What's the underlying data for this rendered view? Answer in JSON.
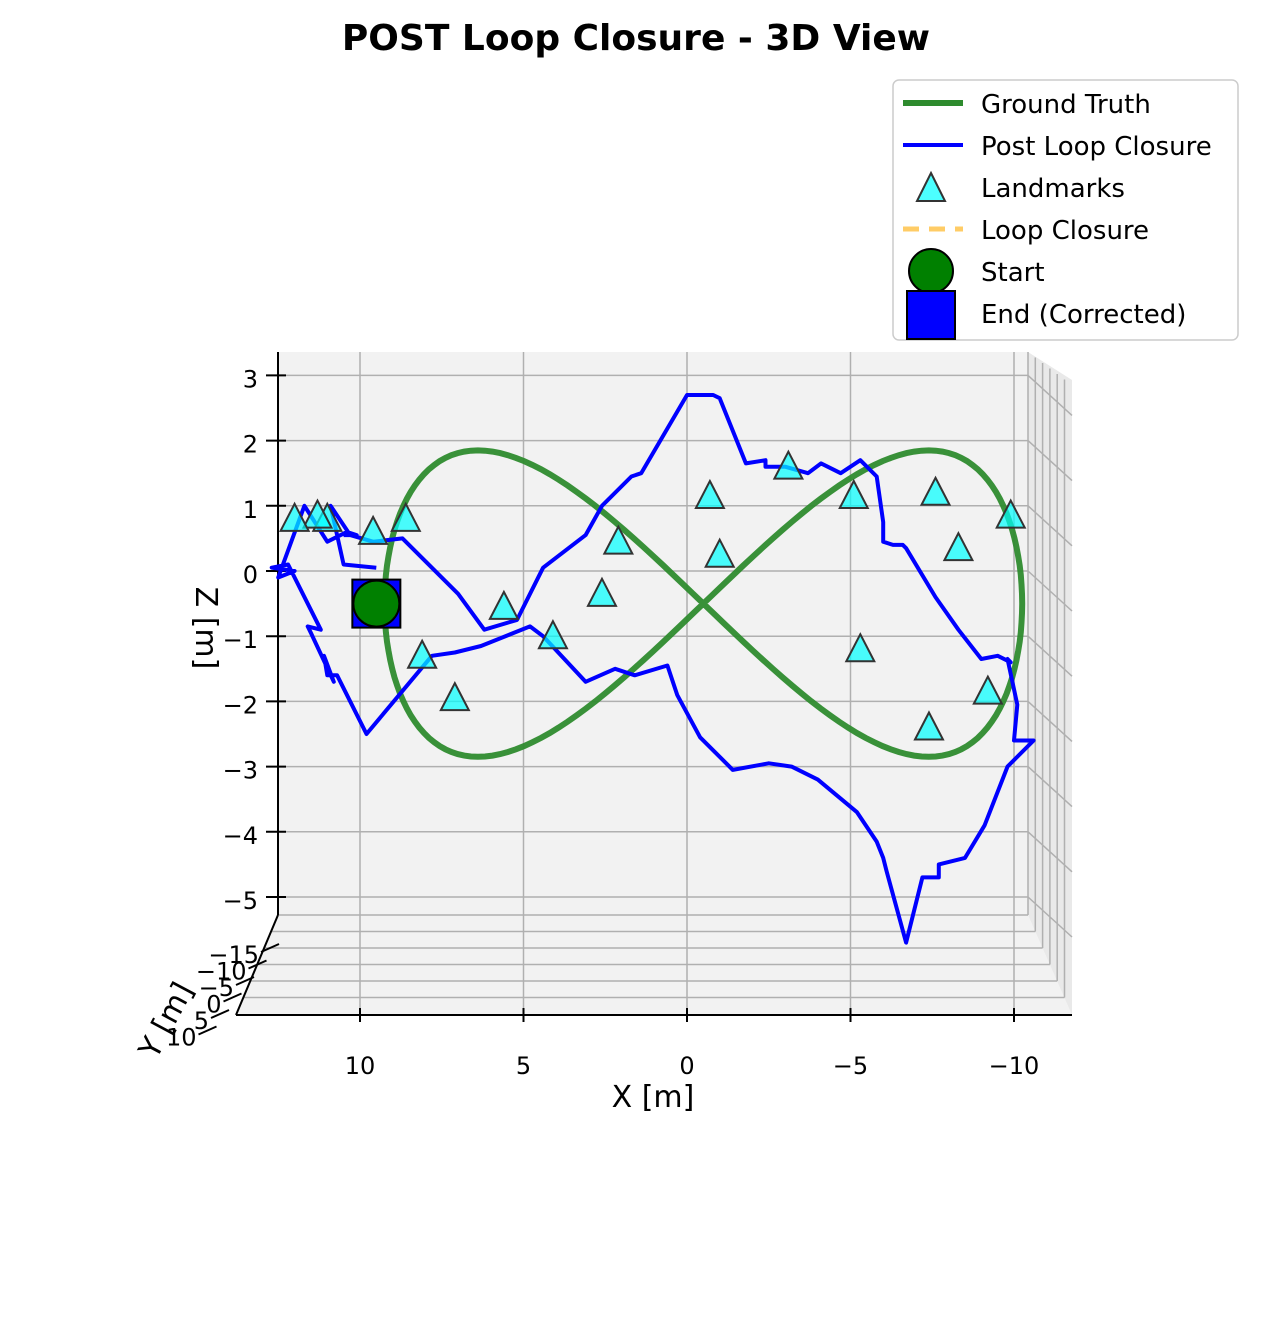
{
  "chart_data": {
    "type": "line",
    "title": "POST Loop Closure - 3D View",
    "xlabel": "X [m]",
    "ylabel": "Y [m]",
    "zlabel": "Z [m]",
    "view": "3D, seen from the front (Y axis foreshortened)",
    "x_axis_inverted": true,
    "xlim": [
      13,
      -12
    ],
    "zlim": [
      -5.2,
      3.3
    ],
    "xticks": [
      10,
      5,
      0,
      -5,
      -10
    ],
    "xtick_labels": [
      "10",
      "5",
      "0",
      "−5",
      "−10"
    ],
    "yticks": [
      -15,
      -10,
      -5,
      0,
      5,
      10
    ],
    "ytick_labels": [
      "−15",
      "−10",
      "−5",
      "0",
      "5",
      "10"
    ],
    "zticks": [
      3,
      2,
      1,
      0,
      -1,
      -2,
      -3,
      -4,
      -5
    ],
    "ztick_labels": [
      "3",
      "2",
      "1",
      "0",
      "−1",
      "−2",
      "−3",
      "−4",
      "−5"
    ],
    "grid": true,
    "legend_position": "top-right",
    "colors": {
      "ground_truth": "#2e8b2e",
      "post_loop_closure": "#0000ff",
      "landmarks": "#00ffff",
      "loop_closure": "#ffcc66",
      "start": "#008000",
      "end": "#0000ff"
    },
    "series": [
      {
        "name": "Ground Truth",
        "style": "figure-eight",
        "center": [
          -0.5,
          -0.5
        ],
        "x_amplitude": 9.75,
        "z_amplitude": 2.35,
        "z_phase_deg": 0
      },
      {
        "name": "Post Loop Closure",
        "x": [
          9.5,
          10.5,
          10.9,
          10.3,
          9.6,
          8.7,
          7.0,
          7.0,
          6.2,
          5.2,
          4.4,
          4.4,
          3.1,
          2.6,
          1.7,
          1.4,
          0.0,
          -0.8,
          -1.0,
          -1.8,
          -2.4,
          -2.4,
          -3.0,
          -3.7,
          -4.1,
          -4.7,
          -5.3,
          -5.8,
          -6.0,
          -6.0,
          -6.3,
          -6.6,
          -6.7,
          -7.6,
          -8.3,
          -9.0,
          -9.5,
          -9.9,
          -9.8,
          -10.1,
          -10.0,
          -10.6,
          -9.8,
          -9.1,
          -8.5,
          -7.7,
          -7.7,
          -7.2,
          -6.7,
          -6.1,
          -6.0,
          -5.8,
          -5.2,
          -4.0,
          -3.2,
          -2.5,
          -1.4,
          -0.4,
          0.3,
          0.6,
          1.6,
          2.2,
          3.1,
          4.4,
          4.8,
          6.3,
          7.1,
          7.8,
          9.8,
          10.7,
          11.0,
          11.1,
          10.8,
          11.5,
          11.6,
          11.2,
          12.2,
          12.7,
          12.0,
          12.5,
          11.7,
          11.0,
          10.4,
          10.1,
          10.5
        ],
        "z": [
          0.05,
          0.1,
          1.0,
          0.55,
          0.45,
          0.5,
          -0.35,
          -0.35,
          -0.9,
          -0.75,
          0.05,
          0.05,
          0.55,
          1.0,
          1.45,
          1.5,
          2.7,
          2.7,
          2.65,
          1.65,
          1.7,
          1.6,
          1.6,
          1.5,
          1.65,
          1.5,
          1.7,
          1.45,
          0.75,
          0.45,
          0.4,
          0.4,
          0.35,
          -0.4,
          -0.9,
          -1.35,
          -1.3,
          -1.4,
          -1.35,
          -2.05,
          -2.6,
          -2.6,
          -3.0,
          -3.9,
          -4.4,
          -4.5,
          -4.7,
          -4.7,
          -5.7,
          -4.6,
          -4.4,
          -4.15,
          -3.7,
          -3.2,
          -3.0,
          -2.95,
          -3.05,
          -2.55,
          -1.9,
          -1.45,
          -1.6,
          -1.5,
          -1.7,
          -1.0,
          -0.85,
          -1.15,
          -1.25,
          -1.3,
          -2.5,
          -1.6,
          -1.6,
          -1.3,
          -1.7,
          -0.95,
          -0.85,
          -0.9,
          0.1,
          0.05,
          0.0,
          -0.1,
          1.0,
          0.45,
          0.6,
          0.55,
          0.55
        ]
      },
      {
        "name": "Landmarks",
        "marker": "triangle",
        "x": [
          11.0,
          11.3,
          9.6,
          8.6,
          8.1,
          7.1,
          5.6,
          4.1,
          2.6,
          2.1,
          -0.7,
          -1.0,
          -3.1,
          -5.1,
          -5.3,
          -7.4,
          -7.6,
          -8.3,
          -9.2,
          -9.9,
          12.0
        ],
        "z": [
          0.8,
          0.85,
          0.6,
          0.8,
          -1.3,
          -1.95,
          -0.55,
          -1.0,
          -0.35,
          0.45,
          1.15,
          0.25,
          1.6,
          1.15,
          -1.2,
          -2.4,
          1.2,
          0.35,
          -1.85,
          0.85,
          0.8
        ]
      },
      {
        "name": "Loop Closure",
        "style": "dashed",
        "x": [],
        "z": []
      },
      {
        "name": "Start",
        "marker": "circle",
        "x": [
          9.5
        ],
        "z": [
          -0.5
        ]
      },
      {
        "name": "End (Corrected)",
        "marker": "square",
        "x": [
          9.5
        ],
        "z": [
          -0.5
        ]
      }
    ]
  }
}
